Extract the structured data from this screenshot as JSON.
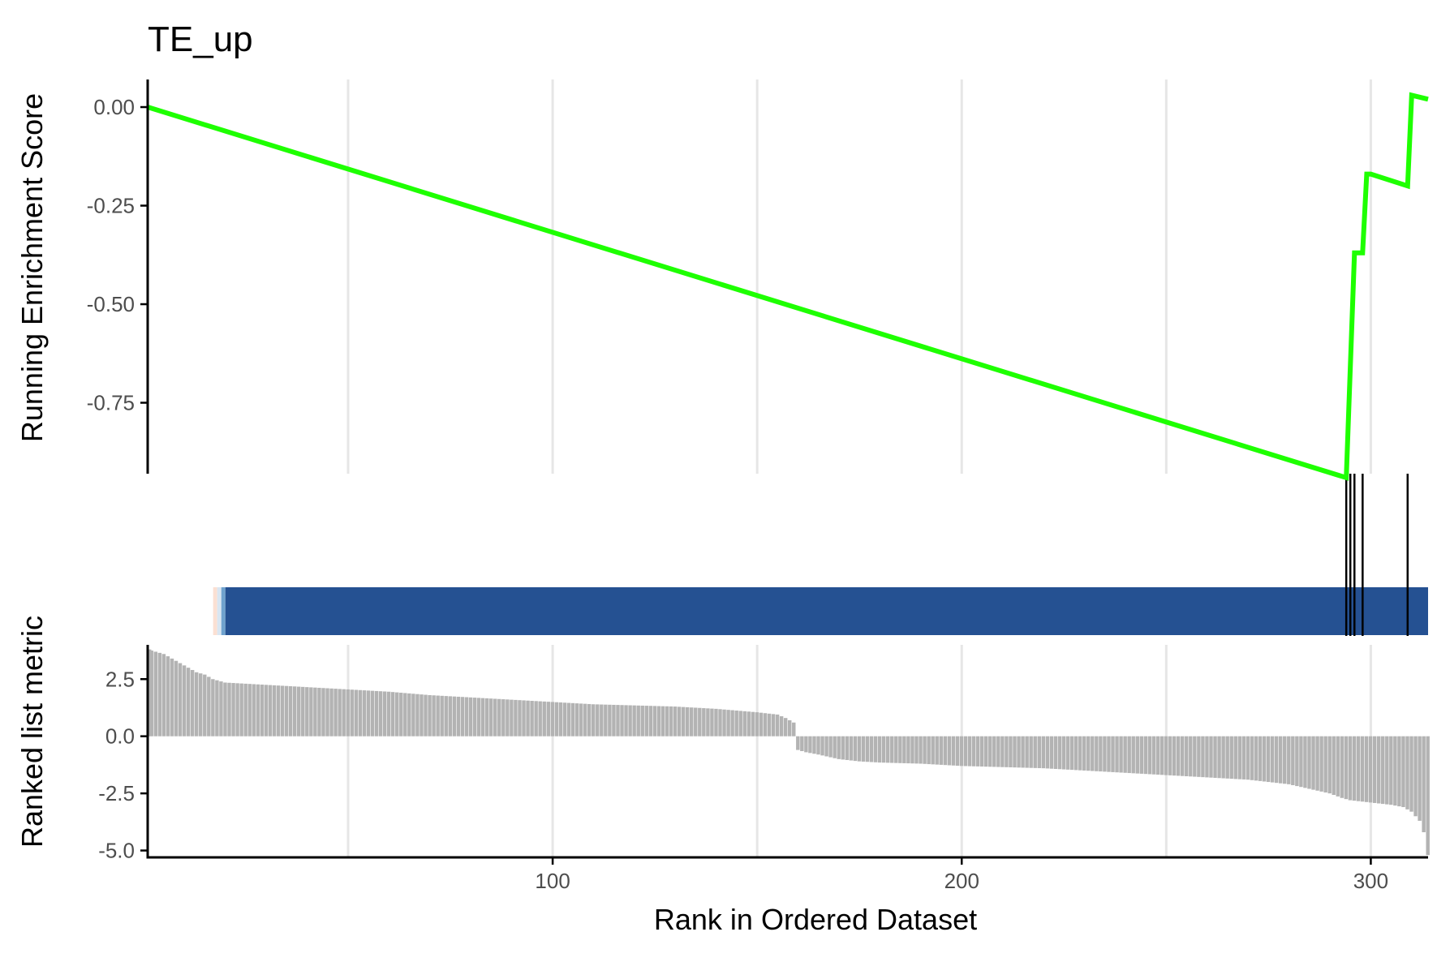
{
  "chart_data": {
    "type": "line",
    "title": "TE_up",
    "xlabel": "Rank in Ordered Dataset",
    "xlim": [
      1,
      314
    ],
    "x_ticks": [
      100,
      200,
      300
    ],
    "x_minor_grid": [
      50,
      150,
      250
    ],
    "colors": {
      "es_line": "#1EFF00",
      "hit_line": "#000000",
      "color_band": "#255192",
      "metric_bar": "#B3B3B3",
      "grid": "#E6E6E6",
      "axis": "#000000"
    },
    "panels": [
      {
        "name": "running-enrichment-score",
        "type": "line",
        "ylabel": "Running Enrichment Score",
        "ylim": [
          -0.93,
          0.07
        ],
        "y_ticks": [
          "0.00",
          "-0.25",
          "-0.50",
          "-0.75"
        ],
        "y_tick_values": [
          0,
          -0.25,
          -0.5,
          -0.75
        ],
        "x": [
          1,
          294,
          296,
          297,
          298,
          299,
          300,
          309,
          310,
          314
        ],
        "y": [
          0.0,
          -0.94,
          -0.37,
          -0.37,
          -0.37,
          -0.17,
          -0.17,
          -0.2,
          0.03,
          0.02
        ]
      },
      {
        "name": "gene-set-hits",
        "type": "hits",
        "hit_positions": [
          294,
          295,
          296,
          298,
          309
        ]
      },
      {
        "name": "ranked-list-color-band",
        "type": "heatmap",
        "segments": [
          {
            "from": 17,
            "to": 18,
            "color": "#FBE0D3"
          },
          {
            "from": 18,
            "to": 19,
            "color": "#D9E6F2"
          },
          {
            "from": 19,
            "to": 20,
            "color": "#6FA2CE"
          },
          {
            "from": 20,
            "to": 314,
            "color": "#255192"
          }
        ]
      },
      {
        "name": "ranked-list-metric",
        "type": "bar",
        "ylabel": "Ranked list metric",
        "ylim": [
          -5.3,
          4.0
        ],
        "y_ticks": [
          "2.5",
          "0.0",
          "-2.5",
          "-5.0"
        ],
        "y_tick_values": [
          2.5,
          0,
          -2.5,
          -5.0
        ],
        "x": [
          1,
          3,
          5,
          7,
          9,
          11,
          13,
          15,
          17,
          20,
          25,
          30,
          35,
          40,
          50,
          60,
          70,
          80,
          90,
          100,
          110,
          120,
          130,
          140,
          150,
          155,
          157,
          159,
          160,
          162,
          165,
          170,
          175,
          180,
          190,
          200,
          210,
          220,
          230,
          240,
          250,
          260,
          270,
          280,
          285,
          290,
          293,
          295,
          300,
          305,
          308,
          310,
          312,
          313,
          314
        ],
        "values": [
          3.8,
          3.7,
          3.6,
          3.4,
          3.2,
          3.0,
          2.8,
          2.7,
          2.5,
          2.35,
          2.3,
          2.25,
          2.2,
          2.15,
          2.05,
          1.95,
          1.8,
          1.7,
          1.6,
          1.5,
          1.4,
          1.35,
          1.3,
          1.2,
          1.05,
          0.95,
          0.8,
          0.6,
          -0.6,
          -0.7,
          -0.8,
          -1.0,
          -1.1,
          -1.15,
          -1.2,
          -1.3,
          -1.35,
          -1.4,
          -1.5,
          -1.6,
          -1.7,
          -1.8,
          -1.9,
          -2.1,
          -2.3,
          -2.5,
          -2.7,
          -2.8,
          -2.9,
          -3.0,
          -3.1,
          -3.3,
          -3.7,
          -4.2,
          -5.2
        ]
      }
    ]
  }
}
